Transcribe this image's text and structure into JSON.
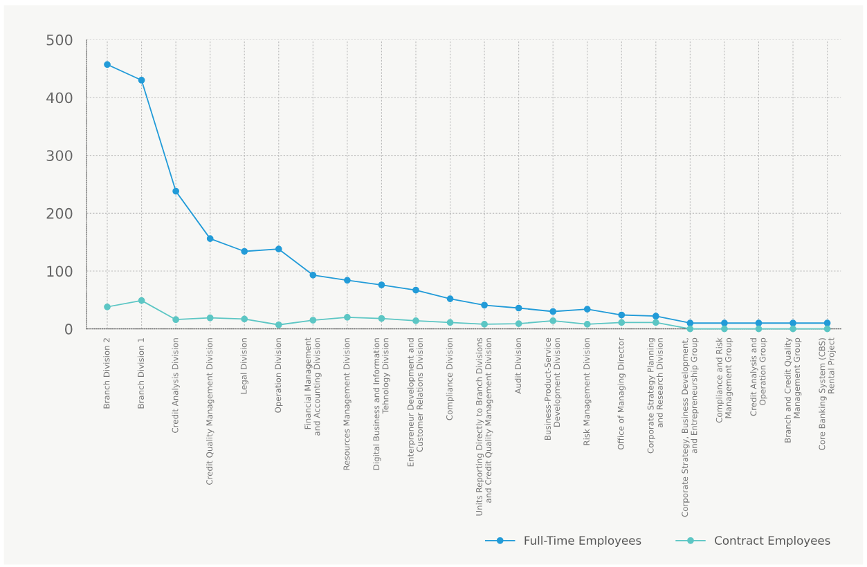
{
  "chart_data": {
    "type": "line",
    "categories": [
      "Branch Division 2",
      "Branch Division 1",
      "Credit Analysis Division",
      "Credit Quality Management Division",
      "Legal Division",
      "Operation Division",
      "Financial Management\nand Accounting Division",
      "Resources Management Division",
      "Digital Business and Information\nTehnology Division",
      "Enterpreneur Development and\nCustomer Relations Division",
      "Compliance Division",
      "Units Reporting Directly to Branch Divisions\nand Credit Quality Management Division",
      "Audit Division",
      "Business-Product-Service\nDevelopment Division",
      "Risk Management Division",
      "Office of Managing Director",
      "Corporate Strategy Planning\nand Research Division",
      "Corporate Strategy, Business Development,\nand Entrepreneurship Group",
      "Compliance and Risk\nManagement Group",
      "Credit Analysis and\nOperation Group",
      "Branch and Credit Quality\nManagement Group",
      "Core Banking System (CBS)\nRental Project"
    ],
    "series": [
      {
        "name": "Full-Time Employees",
        "color": "#229bd8",
        "values": [
          457,
          430,
          238,
          156,
          134,
          138,
          93,
          84,
          76,
          67,
          52,
          41,
          36,
          30,
          34,
          24,
          22,
          10,
          10,
          10,
          10,
          10
        ]
      },
      {
        "name": "Contract Employees",
        "color": "#5cc6c4",
        "values": [
          38,
          49,
          16,
          19,
          17,
          7,
          15,
          20,
          18,
          14,
          11,
          8,
          9,
          14,
          8,
          11,
          11,
          0,
          0,
          0,
          0,
          0
        ]
      }
    ],
    "ylim": [
      0,
      500
    ],
    "yticks": [
      0,
      100,
      200,
      300,
      400,
      500
    ],
    "grid": true,
    "legend": "bottom right",
    "marker": "circle",
    "line_style": "solid"
  }
}
